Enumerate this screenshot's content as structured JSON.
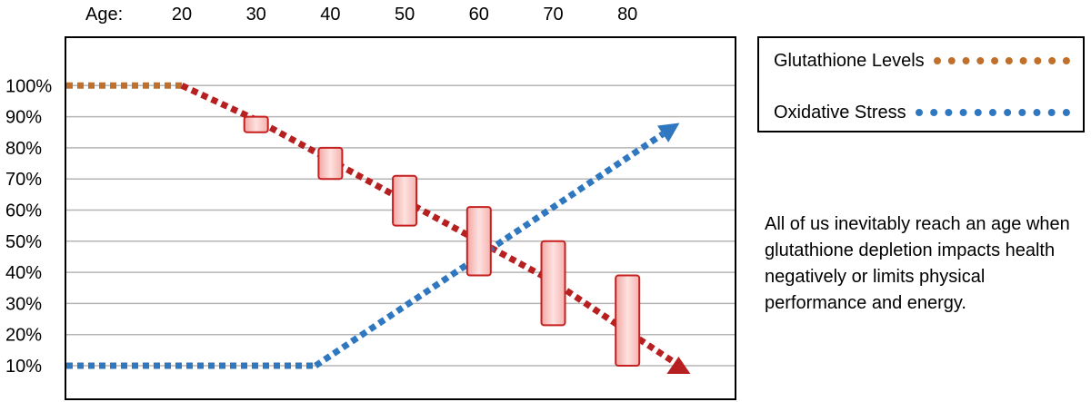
{
  "chart_data": {
    "type": "line",
    "x_axis_label": "Age:",
    "x_ticks": [
      20,
      30,
      40,
      50,
      60,
      70,
      80
    ],
    "y_ticks": [
      "100%",
      "90%",
      "80%",
      "70%",
      "60%",
      "50%",
      "40%",
      "30%",
      "20%",
      "10%"
    ],
    "ylim": [
      10,
      100
    ],
    "grid": true,
    "legend_position": "right",
    "series": [
      {
        "name": "Glutathione Levels",
        "color": "#c0702a",
        "arrow_color": "#b72020",
        "points": [
          [
            0,
            100
          ],
          [
            20,
            100
          ],
          [
            30,
            89
          ],
          [
            40,
            76
          ],
          [
            50,
            63
          ],
          [
            60,
            50
          ],
          [
            70,
            37
          ],
          [
            80,
            21
          ],
          [
            87,
            10
          ]
        ],
        "ranges": [
          {
            "x": 30,
            "low": 85,
            "high": 90
          },
          {
            "x": 40,
            "low": 70,
            "high": 80
          },
          {
            "x": 50,
            "low": 55,
            "high": 71
          },
          {
            "x": 60,
            "low": 39,
            "high": 61
          },
          {
            "x": 70,
            "low": 23,
            "high": 50
          },
          {
            "x": 80,
            "low": 10,
            "high": 39
          }
        ]
      },
      {
        "name": "Oxidative Stress",
        "color": "#2f78c0",
        "points": [
          [
            0,
            10
          ],
          [
            38,
            10
          ],
          [
            87,
            88
          ]
        ]
      }
    ]
  },
  "legend": {
    "items": [
      {
        "label": "Glutathione Levels",
        "color": "#c0702a"
      },
      {
        "label": "Oxidative Stress",
        "color": "#2f78c0"
      }
    ]
  },
  "caption": "All of us inevitably reach an age when glutathione depletion impacts health negatively or limits physical performance and energy."
}
